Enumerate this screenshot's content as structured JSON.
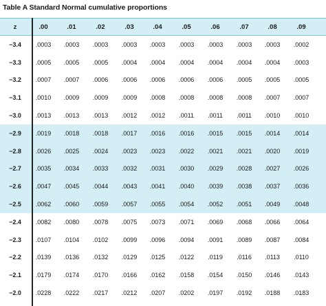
{
  "title": "Table A Standard Normal cumulative proportions",
  "header": {
    "z_label": "z",
    "columns": [
      ".00",
      ".01",
      ".02",
      ".03",
      ".04",
      ".05",
      ".06",
      ".07",
      ".08",
      ".09"
    ]
  },
  "rows": [
    {
      "z": "−3.4",
      "shaded": false,
      "values": [
        ".0003",
        ".0003",
        ".0003",
        ".0003",
        ".0003",
        ".0003",
        ".0003",
        ".0003",
        ".0003",
        ".0002"
      ]
    },
    {
      "z": "−3.3",
      "shaded": false,
      "values": [
        ".0005",
        ".0005",
        ".0005",
        ".0004",
        ".0004",
        ".0004",
        ".0004",
        ".0004",
        ".0004",
        ".0003"
      ]
    },
    {
      "z": "−3.2",
      "shaded": false,
      "values": [
        ".0007",
        ".0007",
        ".0006",
        ".0006",
        ".0006",
        ".0006",
        ".0006",
        ".0005",
        ".0005",
        ".0005"
      ]
    },
    {
      "z": "−3.1",
      "shaded": false,
      "values": [
        ".0010",
        ".0009",
        ".0009",
        ".0009",
        ".0008",
        ".0008",
        ".0008",
        ".0008",
        ".0007",
        ".0007"
      ]
    },
    {
      "z": "−3.0",
      "shaded": false,
      "values": [
        ".0013",
        ".0013",
        ".0013",
        ".0012",
        ".0012",
        ".0011",
        ".0011",
        ".0011",
        ".0010",
        ".0010"
      ]
    },
    {
      "z": "−2.9",
      "shaded": true,
      "values": [
        ".0019",
        ".0018",
        ".0018",
        ".0017",
        ".0016",
        ".0016",
        ".0015",
        ".0015",
        ".0014",
        ".0014"
      ]
    },
    {
      "z": "−2.8",
      "shaded": true,
      "values": [
        ".0026",
        ".0025",
        ".0024",
        ".0023",
        ".0023",
        ".0022",
        ".0021",
        ".0021",
        ".0020",
        ".0019"
      ]
    },
    {
      "z": "−2.7",
      "shaded": true,
      "values": [
        ".0035",
        ".0034",
        ".0033",
        ".0032",
        ".0031",
        ".0030",
        ".0029",
        ".0028",
        ".0027",
        ".0026"
      ]
    },
    {
      "z": "−2.6",
      "shaded": true,
      "values": [
        ".0047",
        ".0045",
        ".0044",
        ".0043",
        ".0041",
        ".0040",
        ".0039",
        ".0038",
        ".0037",
        ".0036"
      ]
    },
    {
      "z": "−2.5",
      "shaded": true,
      "values": [
        ".0062",
        ".0060",
        ".0059",
        ".0057",
        ".0055",
        ".0054",
        ".0052",
        ".0051",
        ".0049",
        ".0048"
      ]
    },
    {
      "z": "−2.4",
      "shaded": false,
      "values": [
        ".0082",
        ".0080",
        ".0078",
        ".0075",
        ".0073",
        ".0071",
        ".0069",
        ".0068",
        ".0066",
        ".0064"
      ]
    },
    {
      "z": "−2.3",
      "shaded": false,
      "values": [
        ".0107",
        ".0104",
        ".0102",
        ".0099",
        ".0096",
        ".0094",
        ".0091",
        ".0089",
        ".0087",
        ".0084"
      ]
    },
    {
      "z": "−2.2",
      "shaded": false,
      "values": [
        ".0139",
        ".0136",
        ".0132",
        ".0129",
        ".0125",
        ".0122",
        ".0119",
        ".0116",
        ".0113",
        ".0110"
      ]
    },
    {
      "z": "−2.1",
      "shaded": false,
      "values": [
        ".0179",
        ".0174",
        ".0170",
        ".0166",
        ".0162",
        ".0158",
        ".0154",
        ".0150",
        ".0146",
        ".0143"
      ]
    },
    {
      "z": "−2.0",
      "shaded": false,
      "values": [
        ".0228",
        ".0222",
        ".0217",
        ".0212",
        ".0207",
        ".0202",
        ".0197",
        ".0192",
        ".0188",
        ".0183"
      ]
    }
  ]
}
